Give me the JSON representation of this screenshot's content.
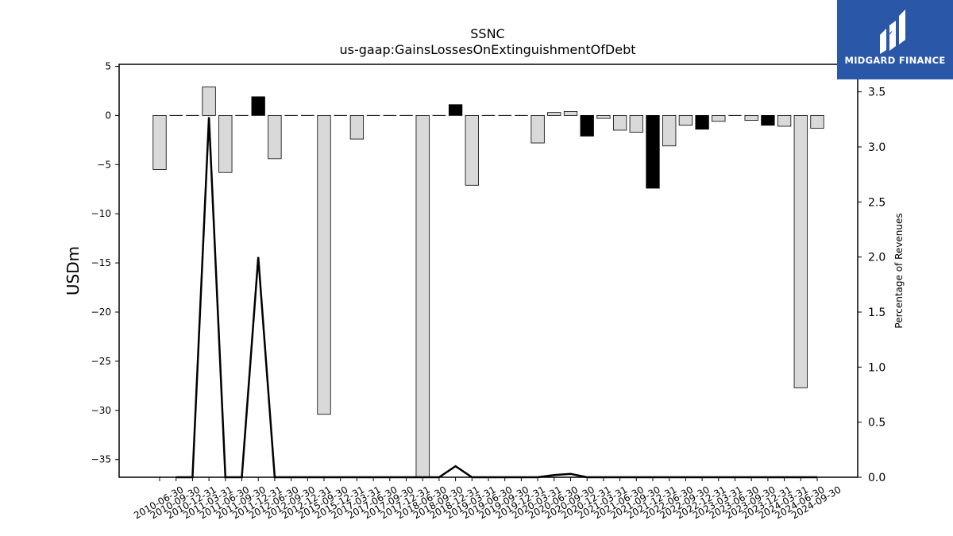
{
  "chart_data": {
    "type": "bar",
    "title": "SSNC",
    "subtitle": "us-gaap:GainsLossesOnExtinguishmentOfDebt",
    "ylabel": "USDm",
    "y2label": "Percentage of Revenues",
    "ylim": [
      -36.8,
      5.2
    ],
    "y2lim": [
      0.0,
      3.75
    ],
    "yticks": [
      5,
      0,
      -5,
      -10,
      -15,
      -20,
      -25,
      -30,
      -35
    ],
    "ytick_labels": [
      "5",
      "0",
      "−5",
      "−10",
      "−15",
      "−20",
      "−25",
      "−30",
      "−35"
    ],
    "y2ticks": [
      0.0,
      0.5,
      1.0,
      1.5,
      2.0,
      2.5,
      3.0,
      3.5
    ],
    "y2tick_labels": [
      "0.0",
      "0.5",
      "1.0",
      "1.5",
      "2.0",
      "2.5",
      "3.0",
      "3.5"
    ],
    "grid": false,
    "categories": [
      "2010-06-30",
      "2010-09-30",
      "2010-12-31",
      "2011-03-31",
      "2011-06-30",
      "2011-09-30",
      "2011-12-31",
      "2012-06-30",
      "2012-09-30",
      "2012-12-31",
      "2015-09-30",
      "2015-12-31",
      "2017-03-31",
      "2017-06-30",
      "2017-09-30",
      "2017-12-31",
      "2018-06-30",
      "2018-09-30",
      "2018-12-31",
      "2019-03-31",
      "2019-06-30",
      "2019-09-30",
      "2019-12-31",
      "2020-03-31",
      "2020-06-30",
      "2020-09-30",
      "2020-12-31",
      "2021-03-31",
      "2021-06-30",
      "2021-09-30",
      "2021-12-31",
      "2022-06-30",
      "2022-09-30",
      "2022-12-31",
      "2023-03-31",
      "2023-06-30",
      "2023-09-30",
      "2023-12-31",
      "2024-03-31",
      "2024-06-30",
      "2024-09-30"
    ],
    "series": [
      {
        "values": [
          -5.5,
          0,
          0,
          2.9,
          -5.8,
          0,
          1.9,
          -4.4,
          0,
          0,
          -30.4,
          0,
          -2.4,
          0,
          0,
          0,
          -36.8,
          0,
          1.1,
          -7.1,
          0,
          0,
          0,
          -2.8,
          0.3,
          0.4,
          -2.1,
          -0.3,
          -1.5,
          -1.7,
          -7.4,
          -3.1,
          -1.0,
          -1.4,
          -0.6,
          0,
          -0.5,
          -1.0,
          -1.1,
          -27.7,
          -1.3
        ],
        "colors": [
          "#d9d9d9",
          "#d9d9d9",
          "#d9d9d9",
          "#d9d9d9",
          "#d9d9d9",
          "#d9d9d9",
          "#000000",
          "#d9d9d9",
          "#d9d9d9",
          "#d9d9d9",
          "#d9d9d9",
          "#d9d9d9",
          "#d9d9d9",
          "#d9d9d9",
          "#d9d9d9",
          "#d9d9d9",
          "#d9d9d9",
          "#d9d9d9",
          "#000000",
          "#d9d9d9",
          "#d9d9d9",
          "#d9d9d9",
          "#d9d9d9",
          "#d9d9d9",
          "#d9d9d9",
          "#d9d9d9",
          "#000000",
          "#d9d9d9",
          "#d9d9d9",
          "#d9d9d9",
          "#000000",
          "#d9d9d9",
          "#d9d9d9",
          "#000000",
          "#d9d9d9",
          "#d9d9d9",
          "#d9d9d9",
          "#000000",
          "#d9d9d9",
          "#d9d9d9",
          "#d9d9d9"
        ]
      },
      {
        "type": "line",
        "axis": "right",
        "values": [
          null,
          0.0,
          0.0,
          3.27,
          0.0,
          0.0,
          2.0,
          0.0,
          0.0,
          0.0,
          0.0,
          0.0,
          0.0,
          0.0,
          0.0,
          0.0,
          0.0,
          0.0,
          0.1,
          0.0,
          0.0,
          0.0,
          0.0,
          0.0,
          0.02,
          0.03,
          0.0,
          0.0,
          0.0,
          0.0,
          0.0,
          0.0,
          0.0,
          0.0,
          0.0,
          0.0,
          0.0,
          0.0,
          0.0,
          0.0,
          0.0
        ]
      }
    ],
    "colors": {
      "gray_bar": "#d9d9d9",
      "black_bar": "#000000",
      "line": "#000000"
    }
  },
  "logo": {
    "text": "MIDGARD FINANCE",
    "background": "#2b57a8"
  }
}
